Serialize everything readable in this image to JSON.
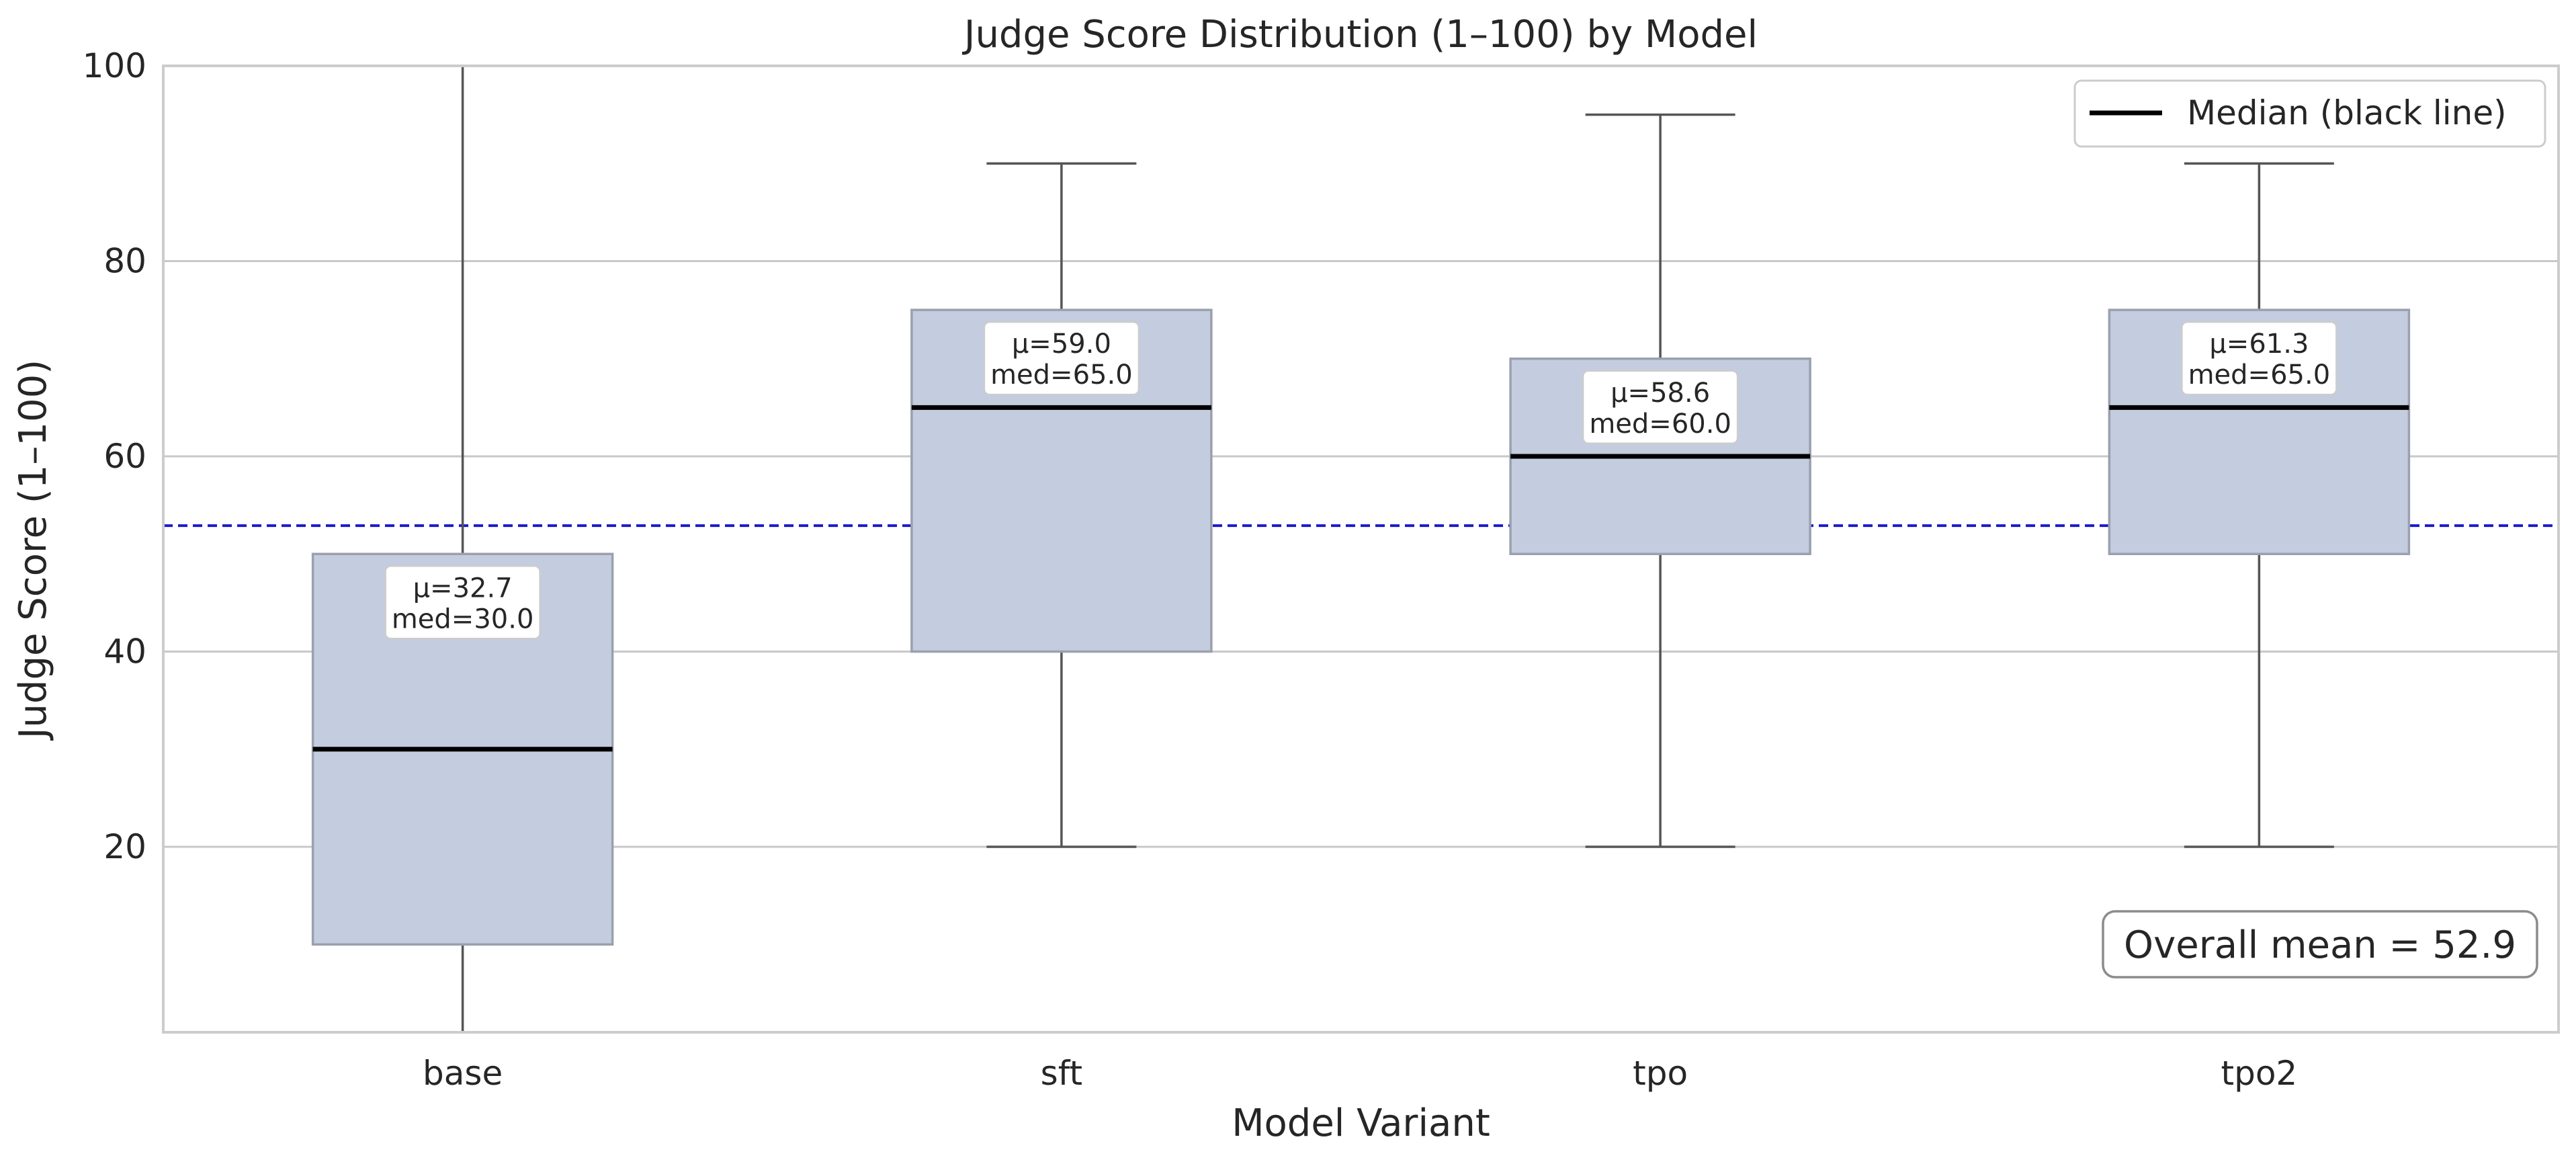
{
  "chart_data": {
    "type": "box",
    "title": "Judge Score Distribution (1–100) by Model",
    "xlabel": "Model Variant",
    "ylabel": "Judge Score (1–100)",
    "ylim": [
      1,
      100
    ],
    "yticks": [
      20,
      40,
      60,
      80,
      100
    ],
    "grid": "horizontal",
    "categories": [
      "base",
      "sft",
      "tpo",
      "tpo2"
    ],
    "boxes": [
      {
        "category": "base",
        "whisker_low": 1,
        "q1": 10,
        "median": 30,
        "q3": 50,
        "whisker_high": 100,
        "mean": 32.7,
        "label_mean": "μ=32.7",
        "label_median": "med=30.0"
      },
      {
        "category": "sft",
        "whisker_low": 20,
        "q1": 40,
        "median": 65,
        "q3": 75,
        "whisker_high": 90,
        "mean": 59.0,
        "label_mean": "μ=59.0",
        "label_median": "med=65.0"
      },
      {
        "category": "tpo",
        "whisker_low": 20,
        "q1": 50,
        "median": 60,
        "q3": 70,
        "whisker_high": 95,
        "mean": 58.6,
        "label_mean": "μ=58.6",
        "label_median": "med=60.0"
      },
      {
        "category": "tpo2",
        "whisker_low": 20,
        "q1": 50,
        "median": 65,
        "q3": 75,
        "whisker_high": 90,
        "mean": 61.3,
        "label_mean": "μ=61.3",
        "label_median": "med=65.0"
      }
    ],
    "overall_mean": 52.9,
    "overall_mean_label": "Overall mean = 52.9",
    "legend": {
      "label": "Median (black line)",
      "placement": "top-right"
    },
    "colors": {
      "box_fill": "#c4cddf",
      "box_edge": "#9aa0ad",
      "median": "#000000",
      "whisker": "#555555",
      "mean_line": "#1a1acc",
      "grid": "#c8c8c8",
      "frame": "#cccccc"
    }
  }
}
